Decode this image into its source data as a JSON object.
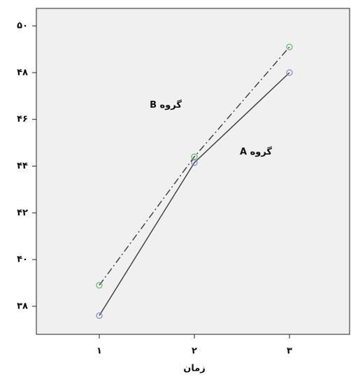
{
  "chart_data": {
    "type": "line",
    "x_label": "زمان",
    "categories": [
      "۱",
      "۲",
      "۳"
    ],
    "series": [
      {
        "name": "گروه A",
        "color": "#8a8ad0",
        "line_color": "#3a3a3a",
        "style": "solid",
        "values": [
          37.6,
          44.15,
          48
        ]
      },
      {
        "name": "گروه B",
        "color": "#66bb66",
        "line_color": "#3a3a3a",
        "style": "dash-dot",
        "values": [
          38.9,
          44.4,
          49.1
        ]
      }
    ],
    "ylim": [
      36.8,
      50.75
    ],
    "yticks": [
      {
        "value": 38,
        "label": "۳۸"
      },
      {
        "value": 40,
        "label": "۴۰"
      },
      {
        "value": 42,
        "label": "۴۲"
      },
      {
        "value": 44,
        "label": "۴۴"
      },
      {
        "value": 46,
        "label": "۴۶"
      },
      {
        "value": 48,
        "label": "۴۸"
      },
      {
        "value": 50,
        "label": "۵۰"
      }
    ],
    "background": "#f0f0f0"
  }
}
